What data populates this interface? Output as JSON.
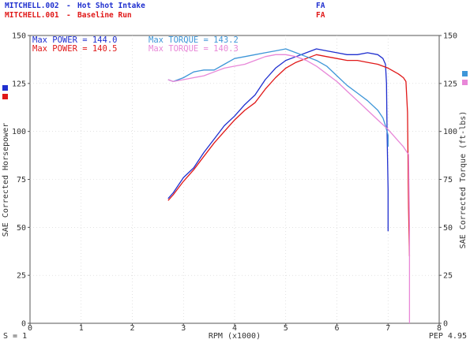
{
  "header": {
    "runs": [
      {
        "file": "MITCHELL.002",
        "dash": "-",
        "desc": "Hot Shot Intake",
        "tag": "FA",
        "color": "#1f2fcf"
      },
      {
        "file": "MITCHELL.001",
        "dash": "-",
        "desc": "Baseline Run",
        "tag": "FA",
        "color": "#e01818"
      }
    ]
  },
  "legend": [
    {
      "label": "Max POWER = 144.0",
      "color": "#1f2fcf"
    },
    {
      "label": "Max TORQUE = 143.2",
      "color": "#3e96d8"
    },
    {
      "label": "Max POWER = 140.5",
      "color": "#e01818"
    },
    {
      "label": "Max TORQUE = 140.3",
      "color": "#e887d8"
    }
  ],
  "footer": {
    "smoothing": "S = 1",
    "pep": "PEP 4.95"
  },
  "chart_data": {
    "type": "line",
    "xlabel": "RPM (x1000)",
    "ylabel_left": "SAE Corrected Horsepower",
    "ylabel_right": "SAE Corrected Torque (ft-lbs)",
    "xlim": [
      0,
      8
    ],
    "ylim": [
      0,
      150
    ],
    "x_ticks": [
      "0",
      "1",
      "2",
      "3",
      "4",
      "5",
      "6",
      "7",
      "8"
    ],
    "y_ticks": [
      "0",
      "25",
      "50",
      "75",
      "100",
      "125",
      "150"
    ],
    "series": [
      {
        "name": "MITCHELL.002 Power",
        "color": "#1f2fcf",
        "x": [
          2.7,
          2.8,
          3.0,
          3.2,
          3.4,
          3.6,
          3.8,
          4.0,
          4.2,
          4.4,
          4.6,
          4.8,
          5.0,
          5.2,
          5.4,
          5.6,
          5.8,
          6.0,
          6.2,
          6.4,
          6.6,
          6.8,
          6.9,
          6.95,
          6.97,
          6.98,
          7.0,
          7.0
        ],
        "y": [
          65,
          68,
          76,
          81,
          89,
          96,
          103,
          108,
          114,
          119,
          127,
          133,
          137,
          139,
          141,
          143,
          142,
          141,
          140,
          140,
          141,
          140,
          138,
          135,
          125,
          100,
          70,
          48
        ]
      },
      {
        "name": "MITCHELL.001 Power",
        "color": "#e01818",
        "x": [
          2.7,
          2.8,
          3.0,
          3.2,
          3.4,
          3.6,
          3.8,
          4.0,
          4.2,
          4.4,
          4.6,
          4.8,
          5.0,
          5.2,
          5.4,
          5.6,
          5.8,
          6.0,
          6.2,
          6.4,
          6.6,
          6.8,
          7.0,
          7.2,
          7.3,
          7.35,
          7.38,
          7.4,
          7.42
        ],
        "y": [
          64,
          67,
          74,
          80,
          87,
          94,
          100,
          106,
          111,
          115,
          122,
          128,
          133,
          136,
          138,
          140,
          139,
          138,
          137,
          137,
          136,
          135,
          133,
          130,
          128,
          126,
          110,
          60,
          35
        ]
      },
      {
        "name": "MITCHELL.002 Torque",
        "color": "#3e96d8",
        "x": [
          2.7,
          2.8,
          3.0,
          3.2,
          3.4,
          3.6,
          3.8,
          4.0,
          4.2,
          4.4,
          4.6,
          4.8,
          5.0,
          5.2,
          5.4,
          5.6,
          5.8,
          6.0,
          6.2,
          6.4,
          6.6,
          6.8,
          6.9,
          6.95,
          7.0,
          7.0
        ],
        "y": [
          127,
          126,
          128,
          131,
          132,
          132,
          135,
          138,
          139,
          140,
          141,
          142,
          143,
          141,
          139,
          137,
          134,
          129,
          124,
          120,
          116,
          111,
          107,
          103,
          98,
          92
        ]
      },
      {
        "name": "MITCHELL.001 Torque",
        "color": "#e887d8",
        "x": [
          2.7,
          2.8,
          3.0,
          3.2,
          3.4,
          3.6,
          3.8,
          4.0,
          4.2,
          4.4,
          4.6,
          4.8,
          5.0,
          5.2,
          5.4,
          5.6,
          5.8,
          6.0,
          6.2,
          6.4,
          6.6,
          6.8,
          7.0,
          7.2,
          7.3,
          7.35,
          7.4,
          7.42,
          7.42
        ],
        "y": [
          127,
          126,
          127,
          128,
          129,
          131,
          133,
          134,
          135,
          137,
          139,
          140,
          140,
          139,
          137,
          134,
          130,
          126,
          121,
          116,
          111,
          106,
          101,
          95,
          92,
          90,
          88,
          50,
          0
        ]
      }
    ]
  }
}
